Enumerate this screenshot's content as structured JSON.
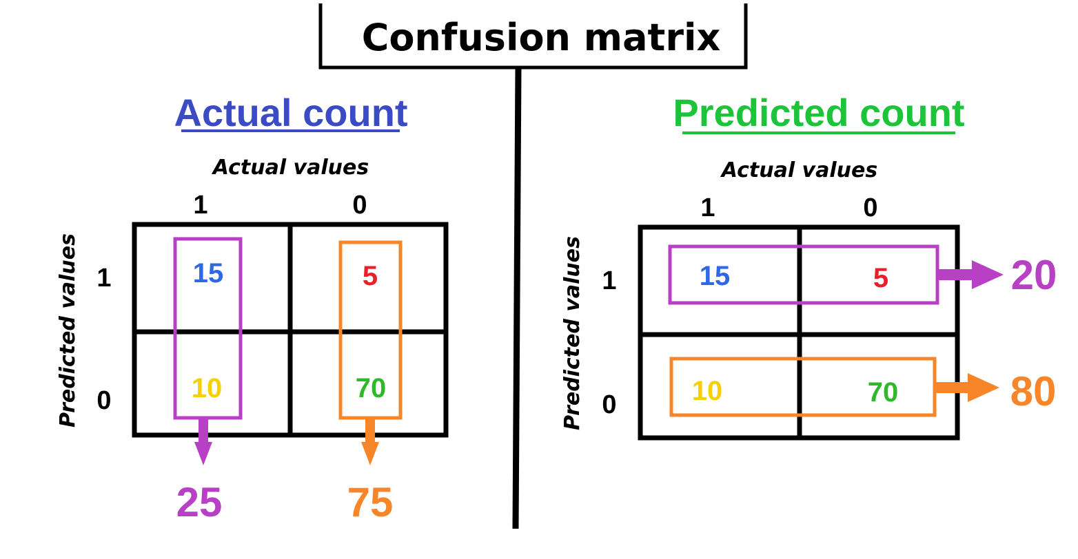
{
  "title": "Confusion matrix",
  "colors": {
    "purple": "#b840c4",
    "orange": "#f7862a",
    "blue": "#2f67e6",
    "red": "#e8202a",
    "yellow": "#f6d000",
    "green": "#2fb82a",
    "actual_heading": "#3a4bc4",
    "predicted_heading": "#1dc43a"
  },
  "left": {
    "heading": "Actual count",
    "col_axis_label": "Actual values",
    "row_axis_label": "Predicted values",
    "col_labels": [
      "1",
      "0"
    ],
    "row_labels": [
      "1",
      "0"
    ],
    "cells": [
      [
        "15",
        "5"
      ],
      [
        "10",
        "70"
      ]
    ],
    "column_totals": [
      "25",
      "75"
    ]
  },
  "right": {
    "heading": "Predicted count",
    "col_axis_label": "Actual values",
    "row_axis_label": "Predicted values",
    "col_labels": [
      "1",
      "0"
    ],
    "row_labels": [
      "1",
      "0"
    ],
    "cells": [
      [
        "15",
        "5"
      ],
      [
        "10",
        "70"
      ]
    ],
    "row_totals": [
      "20",
      "80"
    ]
  }
}
